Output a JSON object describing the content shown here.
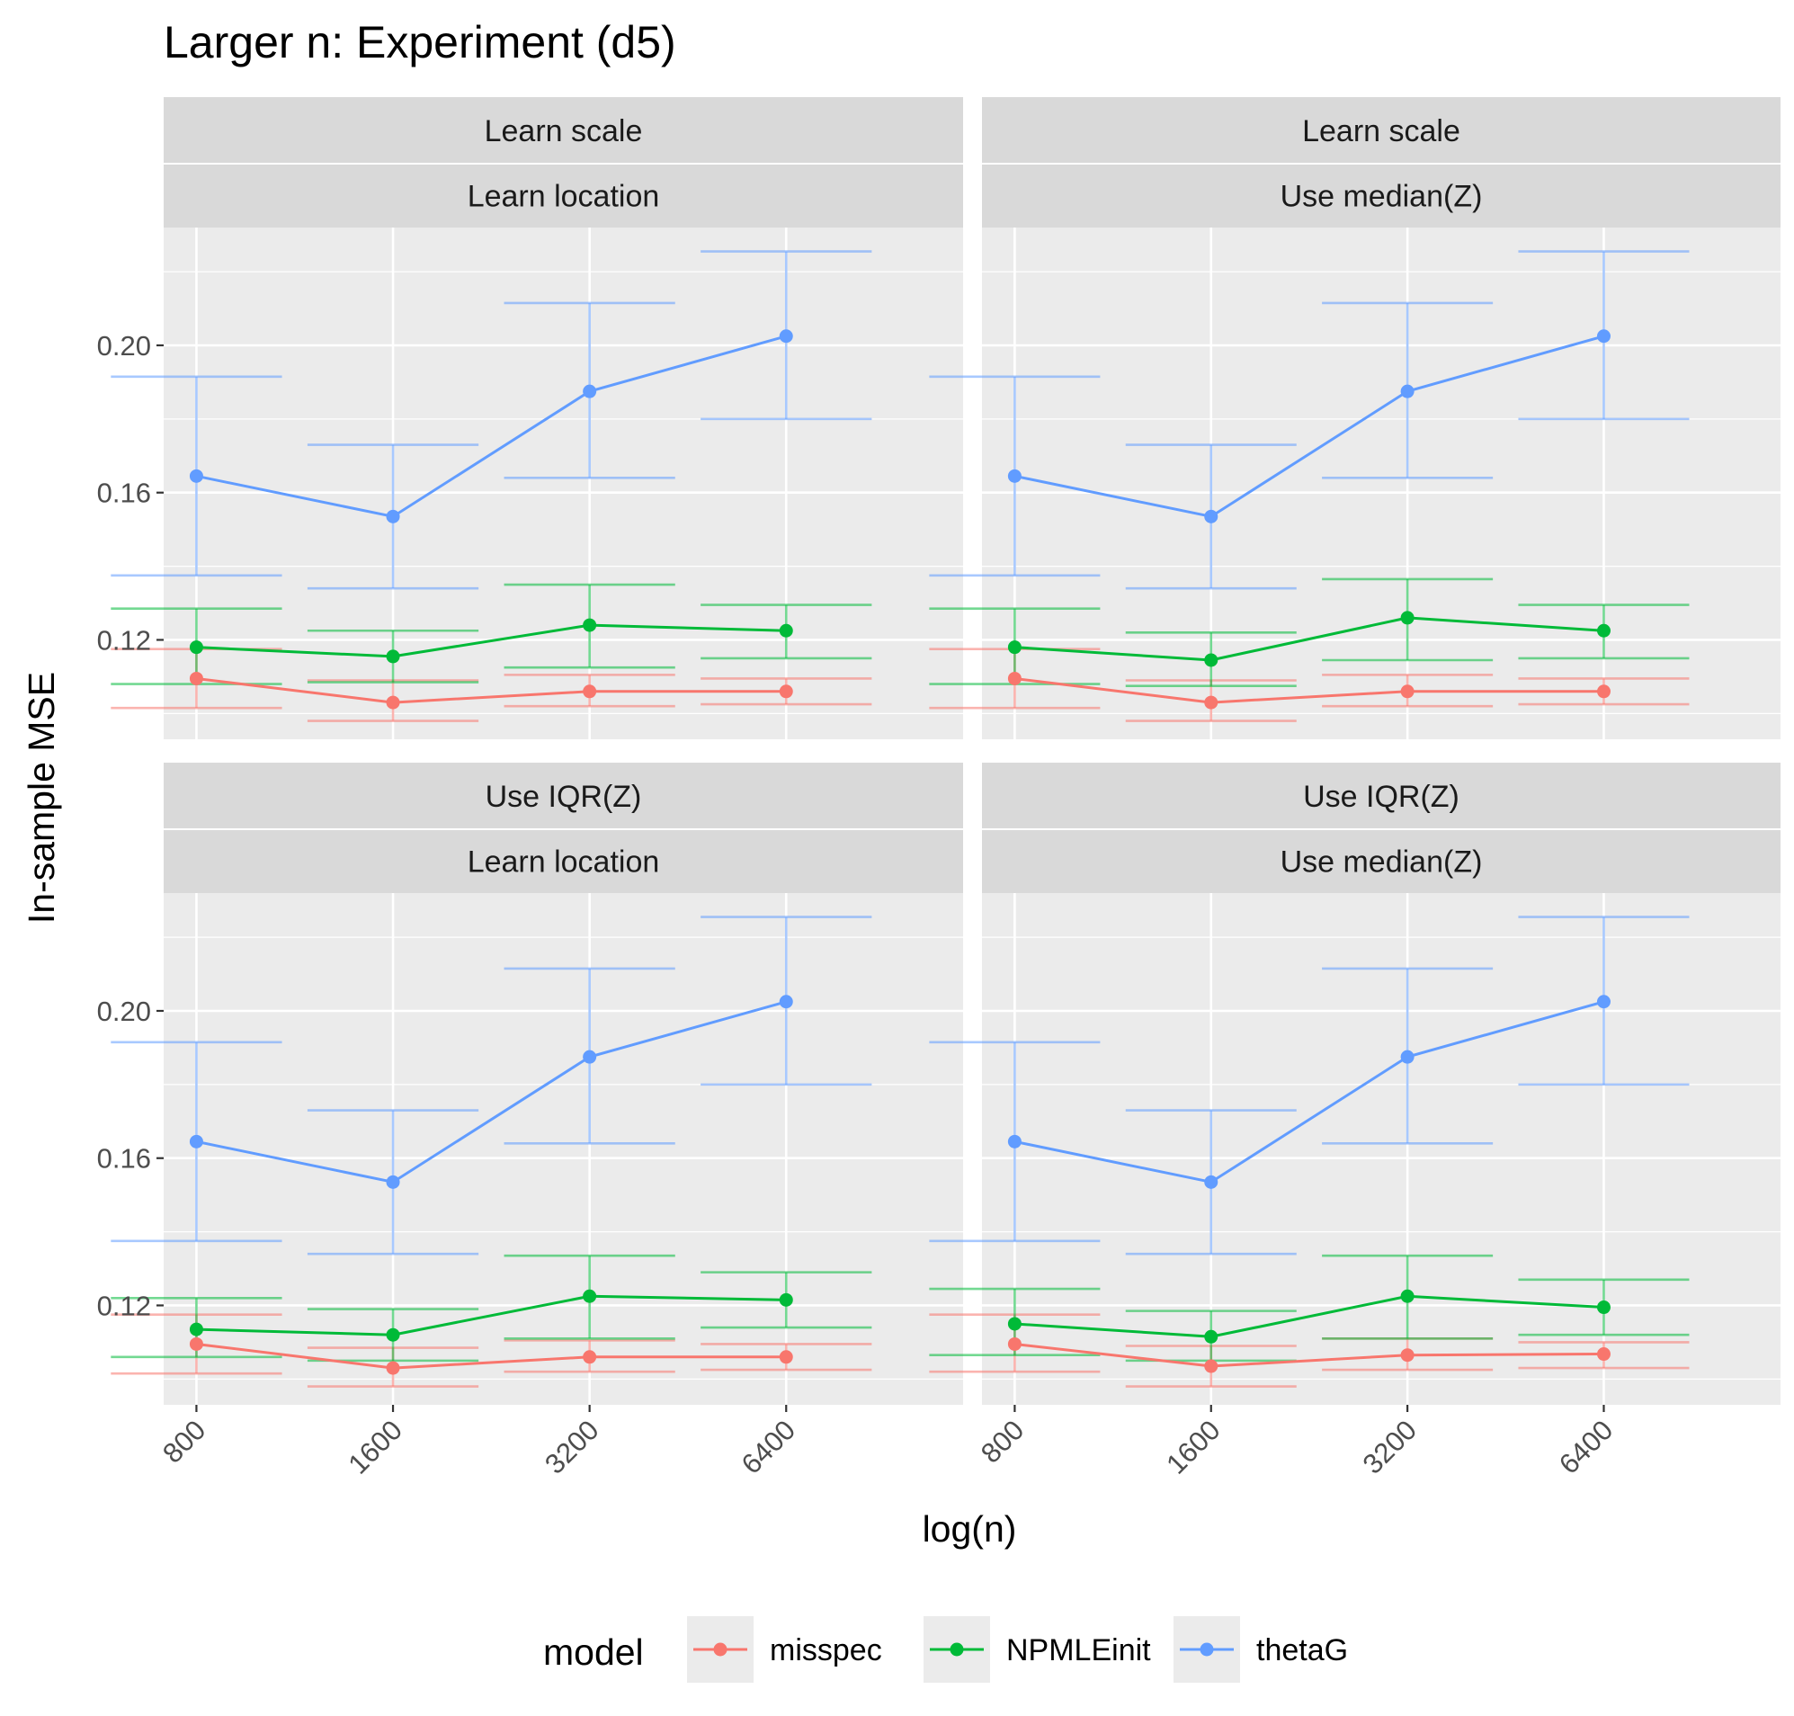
{
  "chart_data": {
    "type": "line",
    "title": "Larger n: Experiment (d5)",
    "xlabel": "log(n)",
    "ylabel": "In-sample MSE",
    "x": [
      800,
      1600,
      3200,
      6400
    ],
    "x_tick_labels": [
      "800",
      "1600",
      "3200",
      "6400"
    ],
    "y_ticks": [
      0.12,
      0.16,
      0.2
    ],
    "y_tick_labels": [
      "0.12",
      "0.16",
      "0.20"
    ],
    "ylim": [
      0.093,
      0.232
    ],
    "grid": true,
    "error_bars": true,
    "legend": {
      "title": "model",
      "position": "bottom",
      "entries": [
        "misspec",
        "NPMLEinit",
        "thetaG"
      ]
    },
    "colors": {
      "misspec": "#F8766D",
      "NPMLEinit": "#00BA38",
      "thetaG": "#619CFF"
    },
    "panels": [
      {
        "strip_top": "Learn scale",
        "strip_bottom": "Learn location",
        "series": [
          {
            "name": "misspec",
            "y": [
              0.1095,
              0.103,
              0.106,
              0.106
            ],
            "lower": [
              0.1015,
              0.098,
              0.102,
              0.1025
            ],
            "upper": [
              0.1175,
              0.109,
              0.1105,
              0.1095
            ]
          },
          {
            "name": "NPMLEinit",
            "y": [
              0.118,
              0.1155,
              0.124,
              0.1225
            ],
            "lower": [
              0.108,
              0.1085,
              0.1125,
              0.115
            ],
            "upper": [
              0.1285,
              0.1225,
              0.135,
              0.1295
            ]
          },
          {
            "name": "thetaG",
            "y": [
              0.1645,
              0.1535,
              0.1875,
              0.2025
            ],
            "lower": [
              0.1375,
              0.134,
              0.164,
              0.18
            ],
            "upper": [
              0.1915,
              0.173,
              0.2115,
              0.2255
            ]
          }
        ]
      },
      {
        "strip_top": "Learn scale",
        "strip_bottom": "Use median(Z)",
        "series": [
          {
            "name": "misspec",
            "y": [
              0.1095,
              0.103,
              0.106,
              0.106
            ],
            "lower": [
              0.1015,
              0.098,
              0.102,
              0.1025
            ],
            "upper": [
              0.1175,
              0.109,
              0.1105,
              0.1095
            ]
          },
          {
            "name": "NPMLEinit",
            "y": [
              0.118,
              0.1145,
              0.126,
              0.1225
            ],
            "lower": [
              0.108,
              0.1075,
              0.1145,
              0.115
            ],
            "upper": [
              0.1285,
              0.122,
              0.1365,
              0.1295
            ]
          },
          {
            "name": "thetaG",
            "y": [
              0.1645,
              0.1535,
              0.1875,
              0.2025
            ],
            "lower": [
              0.1375,
              0.134,
              0.164,
              0.18
            ],
            "upper": [
              0.1915,
              0.173,
              0.2115,
              0.2255
            ]
          }
        ]
      },
      {
        "strip_top": "Use IQR(Z)",
        "strip_bottom": "Learn location",
        "series": [
          {
            "name": "misspec",
            "y": [
              0.1095,
              0.103,
              0.106,
              0.106
            ],
            "lower": [
              0.1015,
              0.098,
              0.102,
              0.1025
            ],
            "upper": [
              0.1175,
              0.1085,
              0.1105,
              0.1095
            ]
          },
          {
            "name": "NPMLEinit",
            "y": [
              0.1135,
              0.112,
              0.1225,
              0.1215
            ],
            "lower": [
              0.106,
              0.105,
              0.111,
              0.114
            ],
            "upper": [
              0.122,
              0.119,
              0.1335,
              0.129
            ]
          },
          {
            "name": "thetaG",
            "y": [
              0.1645,
              0.1535,
              0.1875,
              0.2025
            ],
            "lower": [
              0.1375,
              0.134,
              0.164,
              0.18
            ],
            "upper": [
              0.1915,
              0.173,
              0.2115,
              0.2255
            ]
          }
        ]
      },
      {
        "strip_top": "Use IQR(Z)",
        "strip_bottom": "Use median(Z)",
        "series": [
          {
            "name": "misspec",
            "y": [
              0.1095,
              0.1035,
              0.1065,
              0.1068
            ],
            "lower": [
              0.102,
              0.098,
              0.1025,
              0.103
            ],
            "upper": [
              0.1175,
              0.109,
              0.111,
              0.11
            ]
          },
          {
            "name": "NPMLEinit",
            "y": [
              0.115,
              0.1115,
              0.1225,
              0.1195
            ],
            "lower": [
              0.1065,
              0.105,
              0.111,
              0.112
            ],
            "upper": [
              0.1245,
              0.1185,
              0.1335,
              0.127
            ]
          },
          {
            "name": "thetaG",
            "y": [
              0.1645,
              0.1535,
              0.1875,
              0.2025
            ],
            "lower": [
              0.1375,
              0.134,
              0.164,
              0.18
            ],
            "upper": [
              0.1915,
              0.173,
              0.2115,
              0.2255
            ]
          }
        ]
      }
    ]
  }
}
